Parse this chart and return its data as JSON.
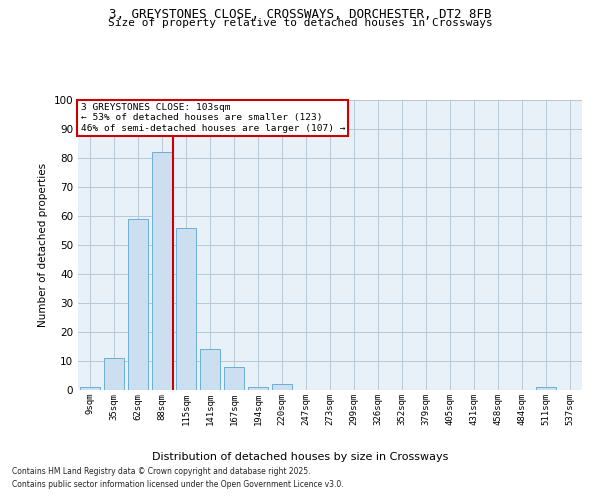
{
  "title_line1": "3, GREYSTONES CLOSE, CROSSWAYS, DORCHESTER, DT2 8FB",
  "title_line2": "Size of property relative to detached houses in Crossways",
  "xlabel": "Distribution of detached houses by size in Crossways",
  "ylabel": "Number of detached properties",
  "categories": [
    "9sqm",
    "35sqm",
    "62sqm",
    "88sqm",
    "115sqm",
    "141sqm",
    "167sqm",
    "194sqm",
    "220sqm",
    "247sqm",
    "273sqm",
    "299sqm",
    "326sqm",
    "352sqm",
    "379sqm",
    "405sqm",
    "431sqm",
    "458sqm",
    "484sqm",
    "511sqm",
    "537sqm"
  ],
  "values": [
    1,
    11,
    59,
    82,
    56,
    14,
    8,
    1,
    2,
    0,
    0,
    0,
    0,
    0,
    0,
    0,
    0,
    0,
    0,
    1,
    0
  ],
  "bar_color": "#ccdff0",
  "bar_edge_color": "#6baed6",
  "grid_color": "#b8c8d8",
  "background_color": "#e8f0f8",
  "annotation_line1": "3 GREYSTONES CLOSE: 103sqm",
  "annotation_line2": "← 53% of detached houses are smaller (123)",
  "annotation_line3": "46% of semi-detached houses are larger (107) →",
  "annotation_box_color": "#ffffff",
  "annotation_box_edge_color": "#cc0000",
  "vline_color": "#cc0000",
  "vline_pos": 3.45,
  "footnote_line1": "Contains HM Land Registry data © Crown copyright and database right 2025.",
  "footnote_line2": "Contains public sector information licensed under the Open Government Licence v3.0.",
  "ylim": [
    0,
    100
  ],
  "yticks": [
    0,
    10,
    20,
    30,
    40,
    50,
    60,
    70,
    80,
    90,
    100
  ]
}
